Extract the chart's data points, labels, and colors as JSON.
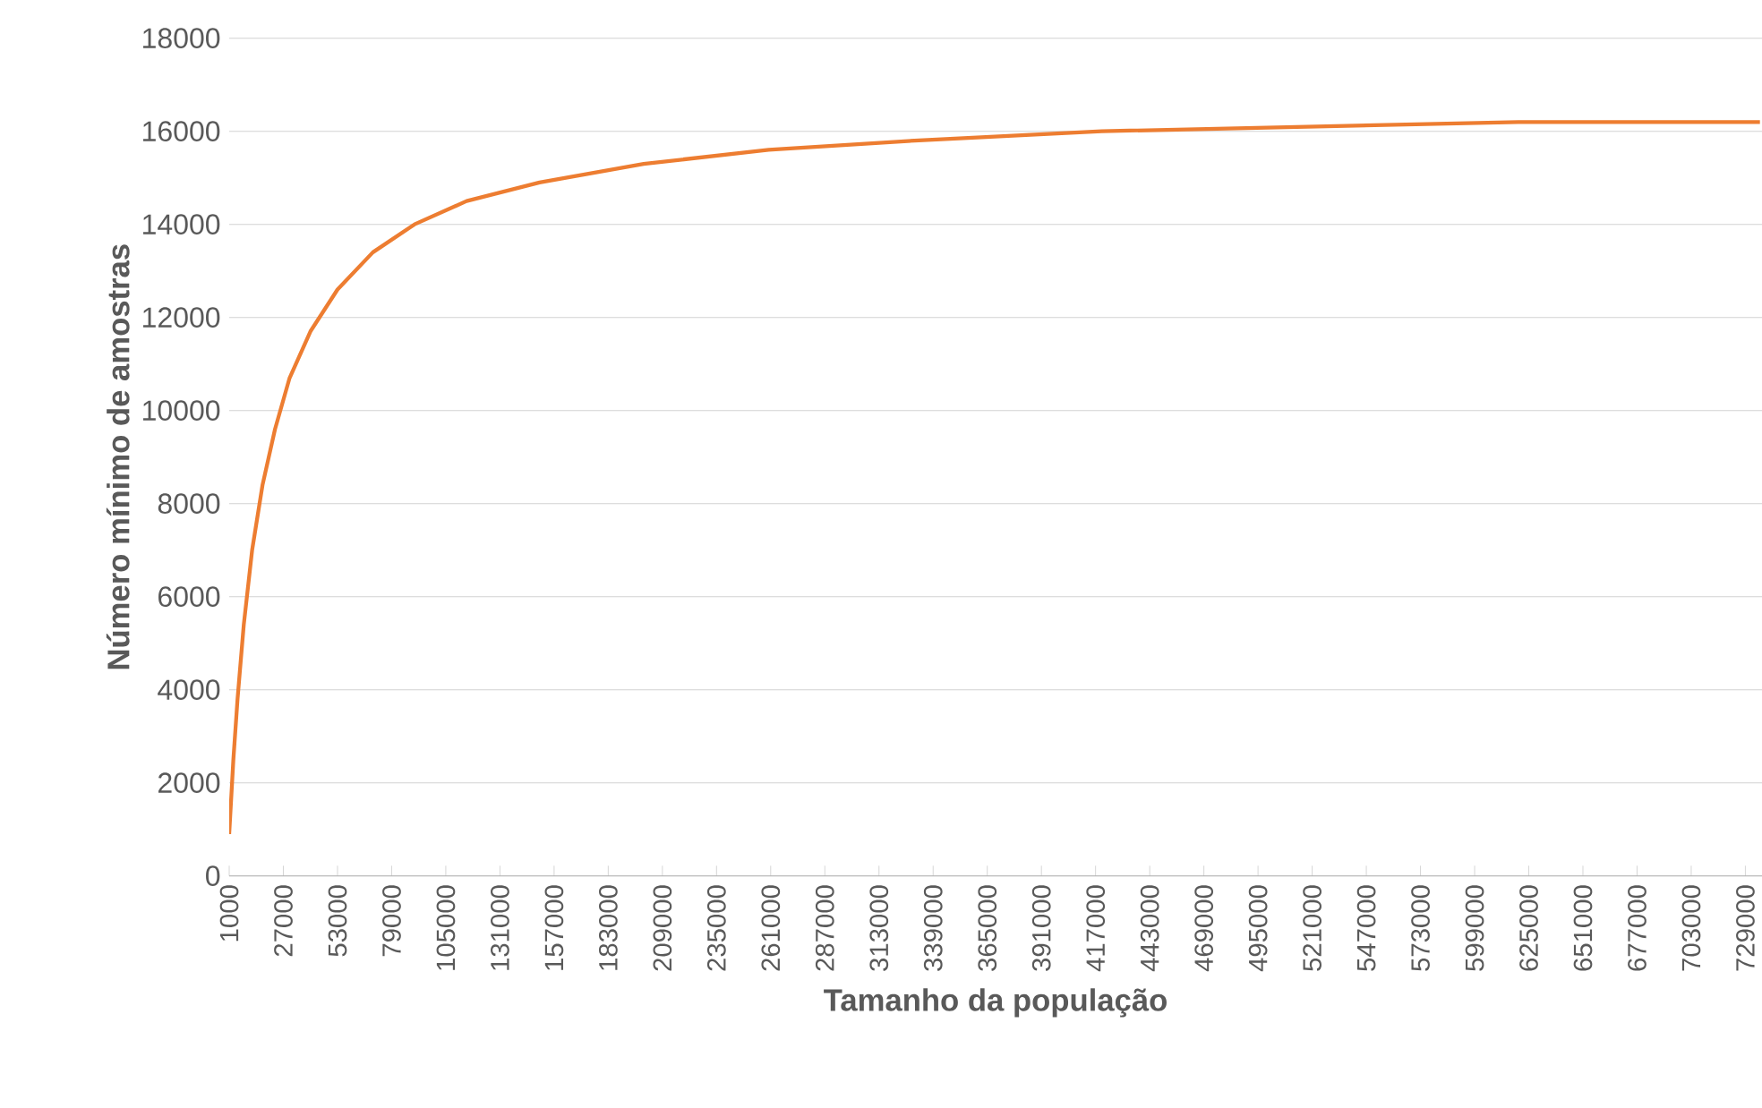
{
  "chart_data": {
    "type": "line",
    "xlabel": "Tamanho da população",
    "ylabel": "Número mínimo de amostras",
    "x": [
      1000,
      3000,
      5000,
      8000,
      12000,
      17000,
      23000,
      30000,
      40000,
      53000,
      70000,
      90000,
      115000,
      150000,
      200000,
      260000,
      330000,
      420000,
      520000,
      620000,
      736000
    ],
    "series": [
      {
        "color": "#ed7d31",
        "values": [
          900,
          2500,
          3800,
          5400,
          7000,
          8400,
          9600,
          10700,
          11700,
          12600,
          13400,
          14000,
          14500,
          14900,
          15300,
          15600,
          15800,
          16000,
          16100,
          16200,
          16200
        ]
      }
    ],
    "xlim": [
      1000,
      737000
    ],
    "xticks": [
      1000,
      27000,
      53000,
      79000,
      105000,
      131000,
      157000,
      183000,
      209000,
      235000,
      261000,
      287000,
      313000,
      339000,
      365000,
      391000,
      417000,
      443000,
      469000,
      495000,
      521000,
      547000,
      573000,
      599000,
      625000,
      651000,
      677000,
      703000,
      729000
    ],
    "ylim": [
      0,
      18000
    ],
    "yticks": [
      0,
      2000,
      4000,
      6000,
      8000,
      10000,
      12000,
      14000,
      16000,
      18000
    ],
    "grid": "y",
    "marker": "none",
    "line_style": "solid"
  }
}
